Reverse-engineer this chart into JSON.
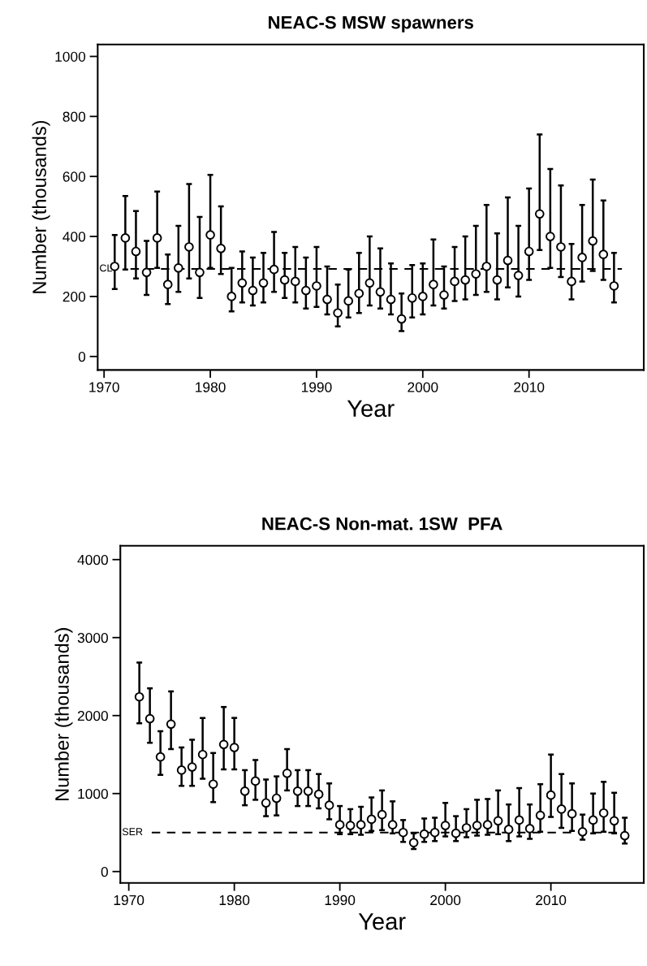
{
  "chart_data": [
    {
      "type": "scatter",
      "title": "NEAC-S MSW spawners",
      "xlabel": "Year",
      "ylabel": "Number (thousands)",
      "x": [
        1971,
        1972,
        1973,
        1974,
        1975,
        1976,
        1977,
        1978,
        1979,
        1980,
        1981,
        1982,
        1983,
        1984,
        1985,
        1986,
        1987,
        1988,
        1989,
        1990,
        1991,
        1992,
        1993,
        1994,
        1995,
        1996,
        1997,
        1998,
        1999,
        2000,
        2001,
        2002,
        2003,
        2004,
        2005,
        2006,
        2007,
        2008,
        2009,
        2010,
        2011,
        2012,
        2013,
        2014,
        2015,
        2016,
        2017,
        2018
      ],
      "series": [
        {
          "color": "#000000",
          "values": [
            300,
            395,
            350,
            280,
            395,
            240,
            295,
            365,
            280,
            405,
            360,
            200,
            245,
            220,
            245,
            290,
            255,
            250,
            220,
            235,
            190,
            145,
            185,
            210,
            245,
            215,
            190,
            125,
            195,
            200,
            240,
            205,
            250,
            255,
            275,
            300,
            255,
            320,
            270,
            350,
            475,
            400,
            365,
            250,
            330,
            385,
            340,
            235
          ],
          "errors": [
            [
              225,
              405
            ],
            [
              290,
              535
            ],
            [
              260,
              485
            ],
            [
              205,
              385
            ],
            [
              295,
              550
            ],
            [
              175,
              340
            ],
            [
              215,
              435
            ],
            [
              260,
              575
            ],
            [
              195,
              465
            ],
            [
              295,
              605
            ],
            [
              275,
              500
            ],
            [
              150,
              295
            ],
            [
              180,
              350
            ],
            [
              170,
              330
            ],
            [
              180,
              345
            ],
            [
              215,
              415
            ],
            [
              195,
              345
            ],
            [
              180,
              365
            ],
            [
              160,
              330
            ],
            [
              165,
              365
            ],
            [
              140,
              300
            ],
            [
              100,
              240
            ],
            [
              130,
              290
            ],
            [
              145,
              345
            ],
            [
              170,
              400
            ],
            [
              160,
              360
            ],
            [
              140,
              310
            ],
            [
              85,
              210
            ],
            [
              130,
              305
            ],
            [
              140,
              310
            ],
            [
              170,
              390
            ],
            [
              160,
              300
            ],
            [
              185,
              365
            ],
            [
              190,
              400
            ],
            [
              205,
              435
            ],
            [
              215,
              505
            ],
            [
              190,
              410
            ],
            [
              230,
              530
            ],
            [
              200,
              435
            ],
            [
              255,
              560
            ],
            [
              355,
              740
            ],
            [
              295,
              625
            ],
            [
              265,
              570
            ],
            [
              190,
              375
            ],
            [
              250,
              505
            ],
            [
              285,
              590
            ],
            [
              255,
              520
            ],
            [
              180,
              345
            ]
          ]
        }
      ],
      "marker": "circle",
      "xlim": [
        1969.4,
        2020.8
      ],
      "xticks": [
        1970,
        1980,
        1990,
        2000,
        2010
      ],
      "ylim": [
        -45,
        1040
      ],
      "yticks": [
        0,
        200,
        400,
        600,
        800,
        1000
      ],
      "grid": false,
      "legend": false,
      "ref_lines": [
        {
          "axis": "y",
          "value": 292,
          "label": "CL",
          "color": "#000000",
          "line_style": "dashed"
        }
      ]
    },
    {
      "type": "scatter",
      "title": "NEAC-S Non-mat. 1SW  PFA",
      "xlabel": "Year",
      "ylabel": "Number (thousands)",
      "x": [
        1971,
        1972,
        1973,
        1974,
        1975,
        1976,
        1977,
        1978,
        1979,
        1980,
        1981,
        1982,
        1983,
        1984,
        1985,
        1986,
        1987,
        1988,
        1989,
        1990,
        1991,
        1992,
        1993,
        1994,
        1995,
        1996,
        1997,
        1998,
        1999,
        2000,
        2001,
        2002,
        2003,
        2004,
        2005,
        2006,
        2007,
        2008,
        2009,
        2010,
        2011,
        2012,
        2013,
        2014,
        2015,
        2016,
        2017
      ],
      "series": [
        {
          "color": "#000000",
          "values": [
            2240,
            1960,
            1470,
            1890,
            1300,
            1340,
            1500,
            1120,
            1630,
            1590,
            1030,
            1160,
            880,
            940,
            1260,
            1030,
            1030,
            990,
            850,
            600,
            590,
            600,
            670,
            730,
            600,
            500,
            370,
            480,
            500,
            590,
            490,
            560,
            590,
            600,
            650,
            540,
            660,
            550,
            720,
            980,
            800,
            740,
            510,
            660,
            750,
            650,
            460
          ],
          "errors": [
            [
              1900,
              2680
            ],
            [
              1650,
              2350
            ],
            [
              1240,
              1800
            ],
            [
              1570,
              2310
            ],
            [
              1100,
              1590
            ],
            [
              1100,
              1690
            ],
            [
              1190,
              1970
            ],
            [
              890,
              1520
            ],
            [
              1310,
              2110
            ],
            [
              1310,
              1970
            ],
            [
              850,
              1300
            ],
            [
              920,
              1430
            ],
            [
              710,
              1180
            ],
            [
              720,
              1220
            ],
            [
              1040,
              1570
            ],
            [
              840,
              1300
            ],
            [
              840,
              1300
            ],
            [
              810,
              1250
            ],
            [
              670,
              1130
            ],
            [
              480,
              840
            ],
            [
              480,
              800
            ],
            [
              470,
              830
            ],
            [
              520,
              950
            ],
            [
              530,
              1040
            ],
            [
              490,
              900
            ],
            [
              380,
              660
            ],
            [
              290,
              490
            ],
            [
              380,
              680
            ],
            [
              390,
              690
            ],
            [
              450,
              880
            ],
            [
              390,
              710
            ],
            [
              440,
              800
            ],
            [
              460,
              920
            ],
            [
              470,
              930
            ],
            [
              480,
              1040
            ],
            [
              390,
              860
            ],
            [
              450,
              1070
            ],
            [
              420,
              860
            ],
            [
              510,
              1120
            ],
            [
              700,
              1500
            ],
            [
              560,
              1250
            ],
            [
              520,
              1130
            ],
            [
              410,
              730
            ],
            [
              490,
              1000
            ],
            [
              510,
              1150
            ],
            [
              490,
              1010
            ],
            [
              360,
              690
            ]
          ]
        }
      ],
      "marker": "circle",
      "xlim": [
        1969.2,
        2018.8
      ],
      "xticks": [
        1970,
        1980,
        1990,
        2000,
        2010
      ],
      "ylim": [
        -146,
        4177
      ],
      "yticks": [
        0,
        1000,
        2000,
        3000,
        4000
      ],
      "grid": false,
      "legend": false,
      "ref_lines": [
        {
          "axis": "y",
          "value": 500,
          "label": "SER",
          "color": "#000000",
          "line_style": "dashed"
        }
      ]
    }
  ]
}
